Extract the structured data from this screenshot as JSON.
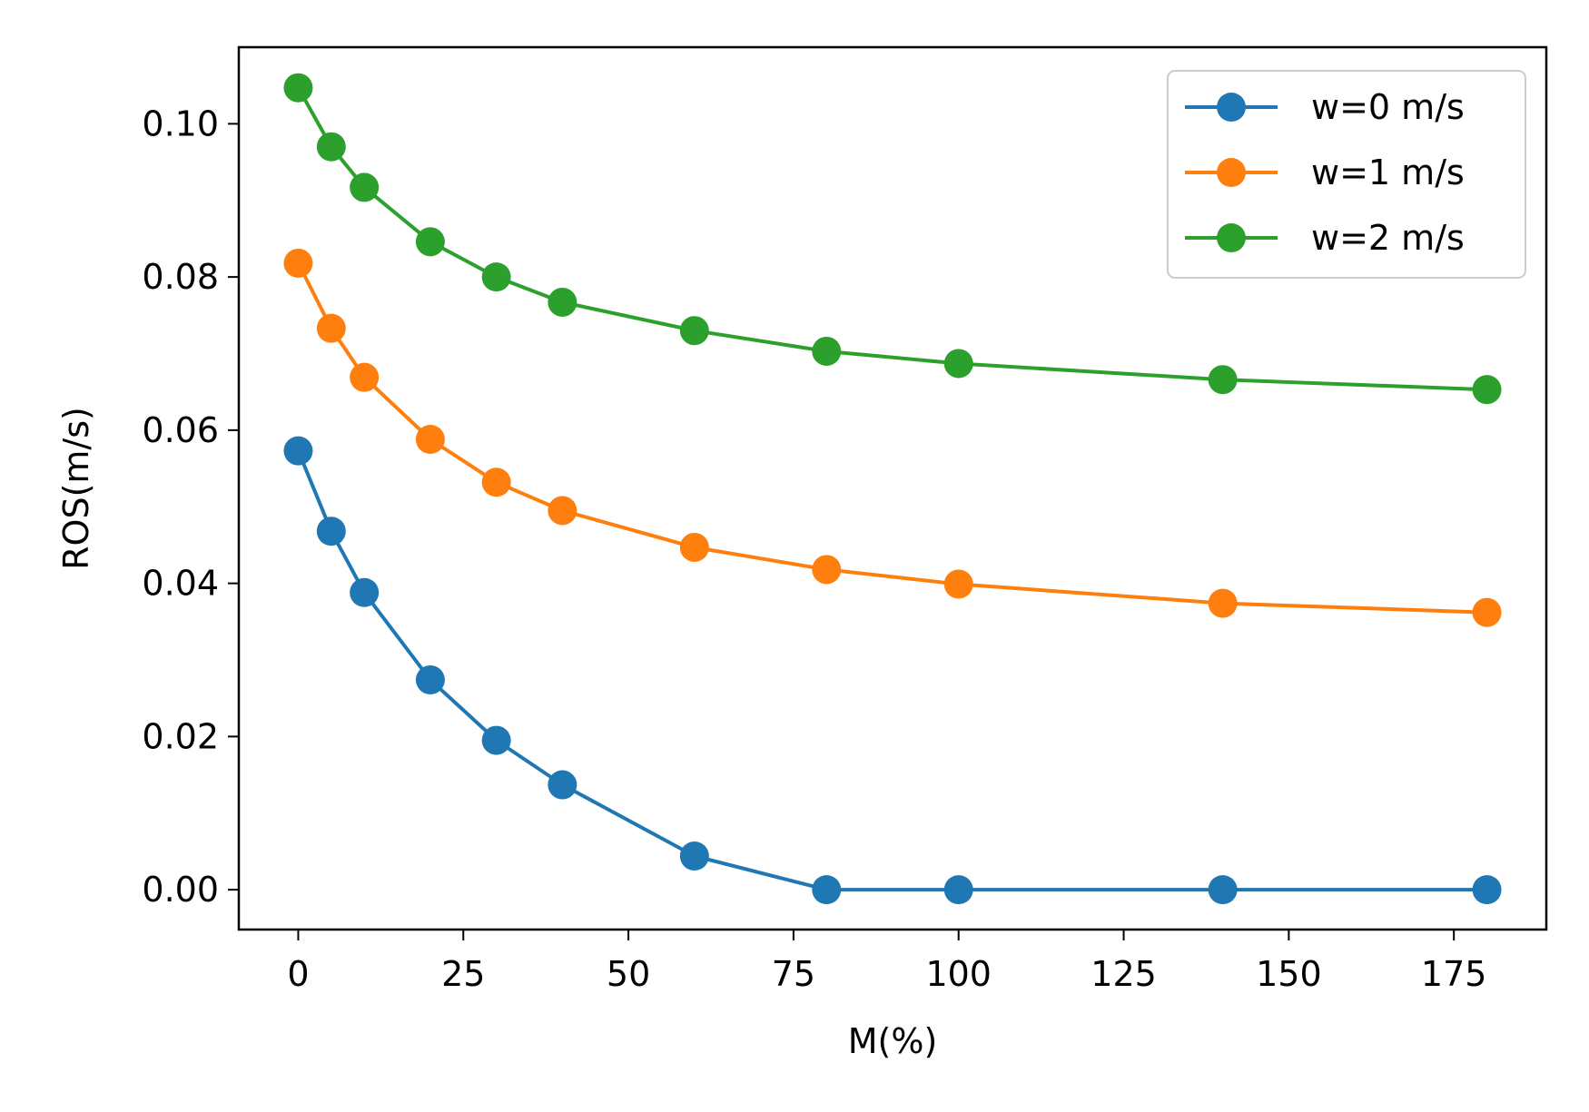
{
  "chart_data": {
    "type": "line",
    "title": "",
    "xlabel": "M(%)",
    "ylabel": "ROS(m/s)",
    "x": [
      0,
      5,
      10,
      20,
      30,
      40,
      60,
      80,
      100,
      140,
      180
    ],
    "xlim": [
      -9,
      189
    ],
    "ylim": [
      -0.0052,
      0.11
    ],
    "xticks": [
      0,
      25,
      50,
      75,
      100,
      125,
      150,
      175
    ],
    "xtick_labels": [
      "0",
      "25",
      "50",
      "75",
      "100",
      "125",
      "150",
      "175"
    ],
    "yticks": [
      0.0,
      0.02,
      0.04,
      0.06,
      0.08,
      0.1
    ],
    "ytick_labels": [
      "0.00",
      "0.02",
      "0.04",
      "0.06",
      "0.08",
      "0.10"
    ],
    "grid": false,
    "legend_position": "top-right",
    "series": [
      {
        "name": "w=0 m/s",
        "color": "#1f77b4",
        "values": [
          0.0573,
          0.0468,
          0.0388,
          0.0274,
          0.0195,
          0.0137,
          0.0044,
          0.0,
          0.0,
          0.0,
          0.0
        ]
      },
      {
        "name": "w=1 m/s",
        "color": "#ff7f0e",
        "values": [
          0.0818,
          0.0733,
          0.0669,
          0.0588,
          0.0532,
          0.0495,
          0.0447,
          0.0418,
          0.0399,
          0.0374,
          0.0362
        ]
      },
      {
        "name": "w=2 m/s",
        "color": "#2ca02c",
        "values": [
          0.1047,
          0.097,
          0.0917,
          0.0846,
          0.08,
          0.0767,
          0.073,
          0.0703,
          0.0687,
          0.0666,
          0.0653
        ]
      }
    ]
  }
}
